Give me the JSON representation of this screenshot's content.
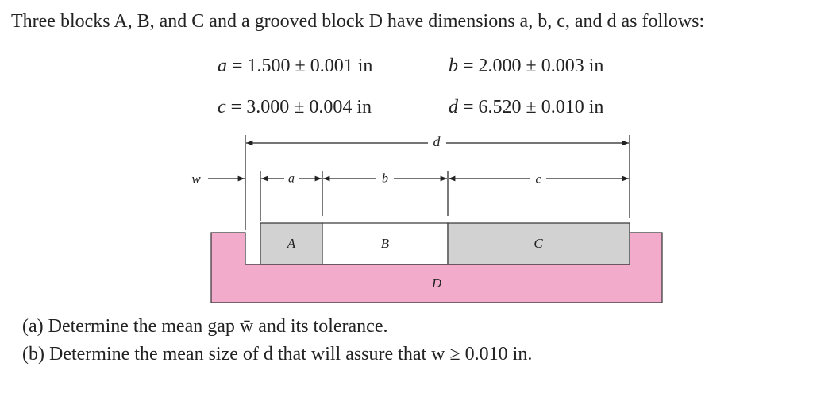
{
  "problem": {
    "intro": "Three blocks A, B, and C and a grooved block D have dimensions a, b, c, and d as follows:",
    "dimensions": [
      {
        "variable": "a",
        "expression": "= 1.500 ± 0.001 in"
      },
      {
        "variable": "b",
        "expression": "= 2.000 ± 0.003 in"
      },
      {
        "variable": "c",
        "expression": "= 3.000 ± 0.004 in"
      },
      {
        "variable": "d",
        "expression": "= 6.520 ± 0.010 in"
      }
    ],
    "figure": {
      "dimension_labels": {
        "d": "d",
        "w": "w",
        "a": "a",
        "b": "b",
        "c": "c"
      },
      "block_labels": {
        "A": "A",
        "B": "B",
        "C": "C",
        "D": "D"
      }
    },
    "questions": [
      {
        "label": "(a)",
        "text": "Determine the mean gap w̄ and its tolerance."
      },
      {
        "label": "(b)",
        "text": "Determine the mean size of d that will assure that w ≥ 0.010 in."
      }
    ]
  }
}
